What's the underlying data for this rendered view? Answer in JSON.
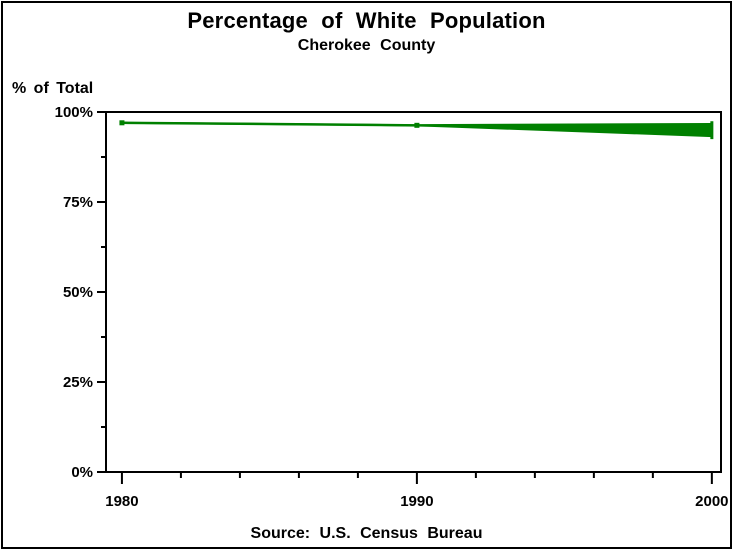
{
  "footnote": "Source: U.S. Census Bureau",
  "colors": {
    "line": "#008000",
    "text": "#000000",
    "background": "#ffffff",
    "frame": "#000000"
  },
  "chart_data": {
    "type": "line",
    "title": "Percentage of White Population",
    "subtitle": "Cherokee County",
    "ylabel": "% of Total",
    "xlabel": "",
    "x": [
      1980,
      1990,
      2000
    ],
    "x_tick_labels": [
      "1980",
      "1990",
      "2000"
    ],
    "x_minor_ticks": [
      1982,
      1984,
      1986,
      1988,
      1992,
      1994,
      1996,
      1998
    ],
    "xlim": [
      1979.46,
      2000.31
    ],
    "ylim": [
      0,
      100
    ],
    "y_tick_values": [
      0,
      25,
      50,
      75,
      100
    ],
    "y_tick_labels": [
      "0%",
      "25%",
      "50%",
      "75%",
      "100%"
    ],
    "y_minor_ticks": [
      12.5,
      37.5,
      62.5,
      87.5
    ],
    "grid": false,
    "legend": "none",
    "band_fill_between_series": true,
    "series": [
      {
        "name": "series-upper",
        "values": [
          97.0,
          96.3,
          96.6
        ]
      },
      {
        "name": "series-lower",
        "values": [
          97.0,
          96.3,
          93.3
        ]
      }
    ],
    "source_note": "Source: U.S. Census Bureau"
  }
}
